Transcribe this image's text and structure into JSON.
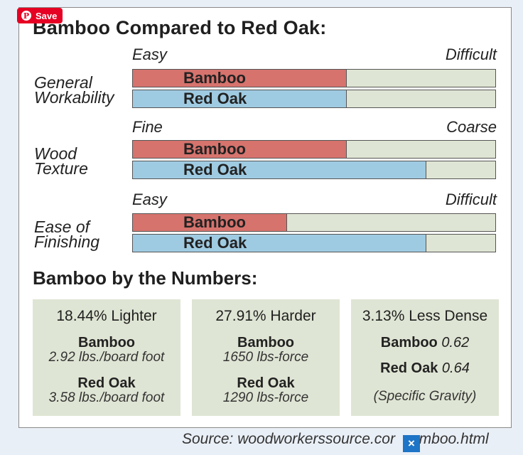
{
  "overlay": {
    "save_label": "Save",
    "pin_glyph": "P"
  },
  "source": "Source: woodworkerssource.cor",
  "source_tail": "amboo.html",
  "close_glyph": "×",
  "chart_data": {
    "type": "bar",
    "title": "Bamboo Compared to Red Oak:",
    "groups": [
      {
        "category": "General Workability",
        "line1": "General",
        "line2": "Workability",
        "scale_low": "Easy",
        "scale_high": "Difficult",
        "series": [
          {
            "name": "Bamboo",
            "value": 0.59,
            "color": "#d6736d"
          },
          {
            "name": "Red Oak",
            "value": 0.59,
            "color": "#9fcbe2"
          }
        ]
      },
      {
        "category": "Wood Texture",
        "line1": "Wood",
        "line2": "Texture",
        "scale_low": "Fine",
        "scale_high": "Coarse",
        "series": [
          {
            "name": "Bamboo",
            "value": 0.59,
            "color": "#d6736d"
          },
          {
            "name": "Red Oak",
            "value": 0.81,
            "color": "#9fcbe2"
          }
        ]
      },
      {
        "category": "Ease of Finishing",
        "line1": "Ease of",
        "line2": "Finishing",
        "scale_low": "Easy",
        "scale_high": "Difficult",
        "series": [
          {
            "name": "Bamboo",
            "value": 0.425,
            "color": "#d6736d"
          },
          {
            "name": "Red Oak",
            "value": 0.81,
            "color": "#9fcbe2"
          }
        ]
      }
    ],
    "numbers_title": "Bamboo by the Numbers:",
    "cards": [
      {
        "headline": "18.44% Lighter",
        "bamboo_label": "Bamboo",
        "bamboo_value": "2.92 lbs./board foot",
        "redoak_label": "Red Oak",
        "redoak_value": "3.58 lbs./board foot"
      },
      {
        "headline": "27.91% Harder",
        "bamboo_label": "Bamboo",
        "bamboo_value": "1650 lbs-force",
        "redoak_label": "Red Oak",
        "redoak_value": "1290 lbs-force"
      },
      {
        "headline": "3.13% Less Dense",
        "bamboo_label": "Bamboo",
        "bamboo_value": "0.62",
        "redoak_label": "Red Oak",
        "redoak_value": "0.64",
        "note": "(Specific Gravity)"
      }
    ]
  }
}
